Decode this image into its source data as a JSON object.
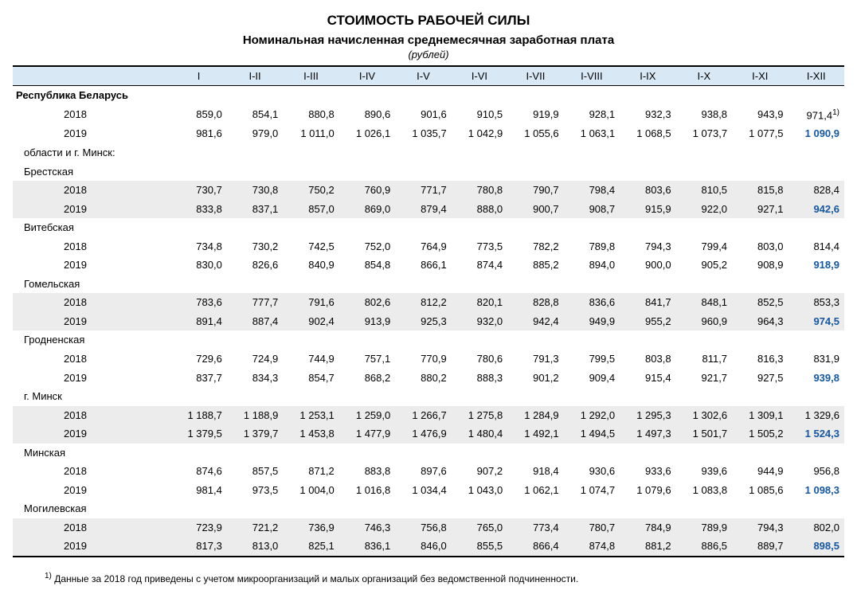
{
  "title": "СТОИМОСТЬ РАБОЧЕЙ СИЛЫ",
  "subtitle": "Номинальная начисленная среднемесячная заработная плата",
  "unit": "(рублей)",
  "columns": [
    "I",
    "I-II",
    "I-III",
    "I-IV",
    "I-V",
    "I-VI",
    "I-VII",
    "I-VIII",
    "I-IX",
    "I-X",
    "I-XI",
    "I-XII"
  ],
  "footnote_marker": "1)",
  "footnote": "Данные за 2018 год приведены с учетом микроорганизаций и малых организаций без ведомственной подчиненности.",
  "labels": {
    "republic": "Республика Беларусь",
    "oblasts_hdr": "области и г. Минск:",
    "brest": "Брестская",
    "vitebsk": "Витебская",
    "gomel": "Гомельская",
    "grodno": "Гродненская",
    "minskcity": "г. Минск",
    "minskobl": "Минская",
    "mogilev": "Могилевская",
    "y2018": "2018",
    "y2019": "2019"
  },
  "data": {
    "republic": {
      "2018": [
        "859,0",
        "854,1",
        "880,8",
        "890,6",
        "901,6",
        "910,5",
        "919,9",
        "928,1",
        "932,3",
        "938,8",
        "943,9",
        "971,4"
      ],
      "2019": [
        "981,6",
        "979,0",
        "1 011,0",
        "1 026,1",
        "1 035,7",
        "1 042,9",
        "1 055,6",
        "1 063,1",
        "1 068,5",
        "1 073,7",
        "1 077,5",
        "1 090,9"
      ]
    },
    "brest": {
      "2018": [
        "730,7",
        "730,8",
        "750,2",
        "760,9",
        "771,7",
        "780,8",
        "790,7",
        "798,4",
        "803,6",
        "810,5",
        "815,8",
        "828,4"
      ],
      "2019": [
        "833,8",
        "837,1",
        "857,0",
        "869,0",
        "879,4",
        "888,0",
        "900,7",
        "908,7",
        "915,9",
        "922,0",
        "927,1",
        "942,6"
      ]
    },
    "vitebsk": {
      "2018": [
        "734,8",
        "730,2",
        "742,5",
        "752,0",
        "764,9",
        "773,5",
        "782,2",
        "789,8",
        "794,3",
        "799,4",
        "803,0",
        "814,4"
      ],
      "2019": [
        "830,0",
        "826,6",
        "840,9",
        "854,8",
        "866,1",
        "874,4",
        "885,2",
        "894,0",
        "900,0",
        "905,2",
        "908,9",
        "918,9"
      ]
    },
    "gomel": {
      "2018": [
        "783,6",
        "777,7",
        "791,6",
        "802,6",
        "812,2",
        "820,1",
        "828,8",
        "836,6",
        "841,7",
        "848,1",
        "852,5",
        "853,3"
      ],
      "2019": [
        "891,4",
        "887,4",
        "902,4",
        "913,9",
        "925,3",
        "932,0",
        "942,4",
        "949,9",
        "955,2",
        "960,9",
        "964,3",
        "974,5"
      ]
    },
    "grodno": {
      "2018": [
        "729,6",
        "724,9",
        "744,9",
        "757,1",
        "770,9",
        "780,6",
        "791,3",
        "799,5",
        "803,8",
        "811,7",
        "816,3",
        "831,9"
      ],
      "2019": [
        "837,7",
        "834,3",
        "854,7",
        "868,2",
        "880,2",
        "888,3",
        "901,2",
        "909,4",
        "915,4",
        "921,7",
        "927,5",
        "939,8"
      ]
    },
    "minskcity": {
      "2018": [
        "1 188,7",
        "1 188,9",
        "1 253,1",
        "1 259,0",
        "1 266,7",
        "1 275,8",
        "1 284,9",
        "1 292,0",
        "1 295,3",
        "1 302,6",
        "1 309,1",
        "1 329,6"
      ],
      "2019": [
        "1 379,5",
        "1 379,7",
        "1 453,8",
        "1 477,9",
        "1 476,9",
        "1 480,4",
        "1 492,1",
        "1 494,5",
        "1 497,3",
        "1 501,7",
        "1 505,2",
        "1 524,3"
      ]
    },
    "minskobl": {
      "2018": [
        "874,6",
        "857,5",
        "871,2",
        "883,8",
        "897,6",
        "907,2",
        "918,4",
        "930,6",
        "933,6",
        "939,6",
        "944,9",
        "956,8"
      ],
      "2019": [
        "981,4",
        "973,5",
        "1 004,0",
        "1 016,8",
        "1 034,4",
        "1 043,0",
        "1 062,1",
        "1 074,7",
        "1 079,6",
        "1 083,8",
        "1 085,6",
        "1 098,3"
      ]
    },
    "mogilev": {
      "2018": [
        "723,9",
        "721,2",
        "736,9",
        "746,3",
        "756,8",
        "765,0",
        "773,4",
        "780,7",
        "784,9",
        "789,9",
        "794,3",
        "802,0"
      ],
      "2019": [
        "817,3",
        "813,0",
        "825,1",
        "836,1",
        "846,0",
        "855,5",
        "866,4",
        "874,8",
        "881,2",
        "886,5",
        "889,7",
        "898,5"
      ]
    }
  },
  "colors": {
    "header_bg": "#d9e8f5",
    "band_bg": "#ececec",
    "highlight": "#1557a0"
  }
}
